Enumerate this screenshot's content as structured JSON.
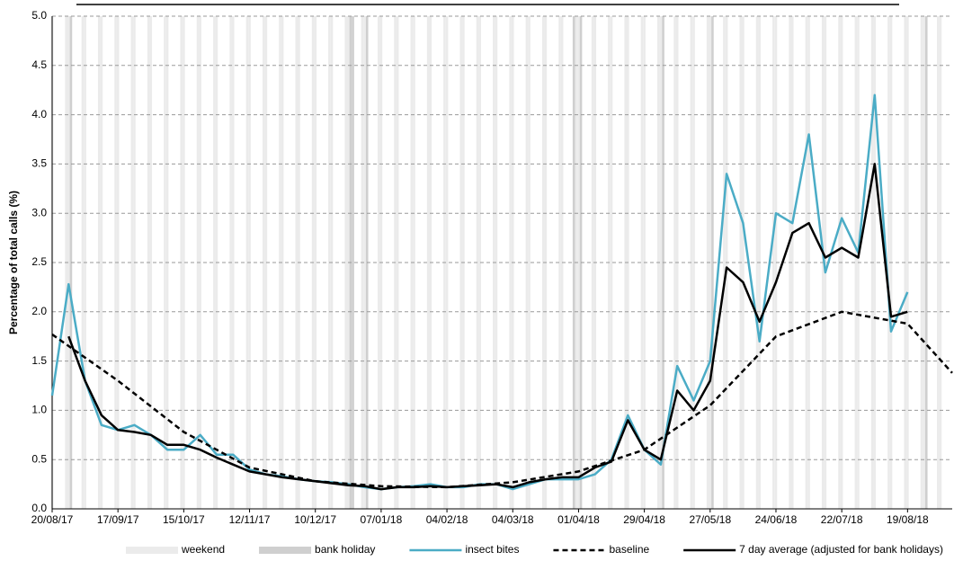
{
  "chart_data": {
    "type": "line",
    "ylabel": "Percentage of total calls (%)",
    "xlim": [
      "20/08/17",
      "07/09/18"
    ],
    "xticks": [
      "20/08/17",
      "17/09/17",
      "15/10/17",
      "12/11/17",
      "10/12/17",
      "07/01/18",
      "04/02/18",
      "04/03/18",
      "01/04/18",
      "29/04/18",
      "27/05/18",
      "24/06/18",
      "22/07/18",
      "19/08/18"
    ],
    "ylim": [
      0,
      5
    ],
    "yticks": [
      {
        "value": 0,
        "label": "0.0"
      },
      {
        "value": 0.5,
        "label": "0.5"
      },
      {
        "value": 1,
        "label": "1.0"
      },
      {
        "value": 1.5,
        "label": "1.5"
      },
      {
        "value": 2,
        "label": "2.0"
      },
      {
        "value": 2.5,
        "label": "2.5"
      },
      {
        "value": 3,
        "label": "3.0"
      },
      {
        "value": 3.5,
        "label": "3.5"
      },
      {
        "value": 4,
        "label": "4.0"
      },
      {
        "value": 4.5,
        "label": "4.5"
      },
      {
        "value": 5,
        "label": "5.0"
      }
    ],
    "grid": true,
    "shading": [
      {
        "name": "weekend",
        "color": "#ebebeb"
      },
      {
        "name": "bank holiday",
        "color": "#cfcfcf",
        "dates": [
          "28/08/17",
          "25/12/17",
          "26/12/17",
          "01/01/18",
          "30/03/18",
          "02/04/18",
          "07/05/18",
          "28/05/18",
          "27/08/18"
        ]
      }
    ],
    "series": [
      {
        "name": "insect bites",
        "color": "#4bacc6",
        "dash": "solid",
        "width": 2.5,
        "x": [
          "20/08/17",
          "27/08/17",
          "03/09/17",
          "10/09/17",
          "17/09/17",
          "24/09/17",
          "01/10/17",
          "08/10/17",
          "15/10/17",
          "22/10/17",
          "29/10/17",
          "05/11/17",
          "12/11/17",
          "19/11/17",
          "26/11/17",
          "03/12/17",
          "10/12/17",
          "17/12/17",
          "24/12/17",
          "31/12/17",
          "07/01/18",
          "14/01/18",
          "21/01/18",
          "28/01/18",
          "04/02/18",
          "11/02/18",
          "18/02/18",
          "25/02/18",
          "04/03/18",
          "11/03/18",
          "18/03/18",
          "25/03/18",
          "01/04/18",
          "08/04/18",
          "15/04/18",
          "22/04/18",
          "29/04/18",
          "06/05/18",
          "13/05/18",
          "20/05/18",
          "27/05/18",
          "03/06/18",
          "10/06/18",
          "17/06/18",
          "24/06/18",
          "01/07/18",
          "08/07/18",
          "15/07/18",
          "22/07/18",
          "29/07/18",
          "05/08/18",
          "12/08/18",
          "19/08/18"
        ],
        "values": [
          1.15,
          2.28,
          1.3,
          0.85,
          0.8,
          0.85,
          0.75,
          0.6,
          0.6,
          0.75,
          0.55,
          0.55,
          0.4,
          0.35,
          0.33,
          0.3,
          0.28,
          0.27,
          0.25,
          0.22,
          0.2,
          0.22,
          0.23,
          0.25,
          0.22,
          0.22,
          0.25,
          0.25,
          0.2,
          0.25,
          0.3,
          0.3,
          0.3,
          0.35,
          0.5,
          0.95,
          0.6,
          0.45,
          1.45,
          1.1,
          1.5,
          3.4,
          2.9,
          1.7,
          3.0,
          2.9,
          3.8,
          2.4,
          2.95,
          2.6,
          4.2,
          1.8,
          2.2
        ]
      },
      {
        "name": "baseline",
        "color": "#000000",
        "dash": "dashed",
        "width": 2.5,
        "x": [
          "20/08/17",
          "17/09/17",
          "15/10/17",
          "12/11/17",
          "10/12/17",
          "07/01/18",
          "04/02/18",
          "04/03/18",
          "01/04/18",
          "29/04/18",
          "27/05/18",
          "24/06/18",
          "22/07/18",
          "19/08/18",
          "07/09/18"
        ],
        "values": [
          1.77,
          1.3,
          0.78,
          0.42,
          0.28,
          0.23,
          0.22,
          0.27,
          0.38,
          0.6,
          1.05,
          1.75,
          2.0,
          1.88,
          1.38
        ]
      },
      {
        "name": "7 day average (adjusted for bank holidays)",
        "color": "#000000",
        "dash": "solid",
        "width": 2.5,
        "x": [
          "27/08/17",
          "03/09/17",
          "10/09/17",
          "17/09/17",
          "24/09/17",
          "01/10/17",
          "08/10/17",
          "15/10/17",
          "22/10/17",
          "29/10/17",
          "05/11/17",
          "12/11/17",
          "19/11/17",
          "26/11/17",
          "03/12/17",
          "10/12/17",
          "17/12/17",
          "24/12/17",
          "31/12/17",
          "07/01/18",
          "14/01/18",
          "21/01/18",
          "28/01/18",
          "04/02/18",
          "11/02/18",
          "18/02/18",
          "25/02/18",
          "04/03/18",
          "11/03/18",
          "18/03/18",
          "25/03/18",
          "01/04/18",
          "08/04/18",
          "15/04/18",
          "22/04/18",
          "29/04/18",
          "06/05/18",
          "13/05/18",
          "20/05/18",
          "27/05/18",
          "03/06/18",
          "10/06/18",
          "17/06/18",
          "24/06/18",
          "01/07/18",
          "08/07/18",
          "15/07/18",
          "22/07/18",
          "29/07/18",
          "05/08/18",
          "12/08/18",
          "19/08/18"
        ],
        "values": [
          1.75,
          1.3,
          0.95,
          0.8,
          0.78,
          0.75,
          0.65,
          0.65,
          0.6,
          0.52,
          0.45,
          0.38,
          0.35,
          0.32,
          0.3,
          0.28,
          0.26,
          0.24,
          0.23,
          0.2,
          0.22,
          0.22,
          0.23,
          0.22,
          0.23,
          0.24,
          0.25,
          0.22,
          0.27,
          0.3,
          0.32,
          0.32,
          0.42,
          0.48,
          0.9,
          0.6,
          0.5,
          1.2,
          1.0,
          1.3,
          2.45,
          2.3,
          1.9,
          2.3,
          2.8,
          2.9,
          2.55,
          2.65,
          2.55,
          3.5,
          1.95,
          2.0
        ]
      }
    ]
  }
}
